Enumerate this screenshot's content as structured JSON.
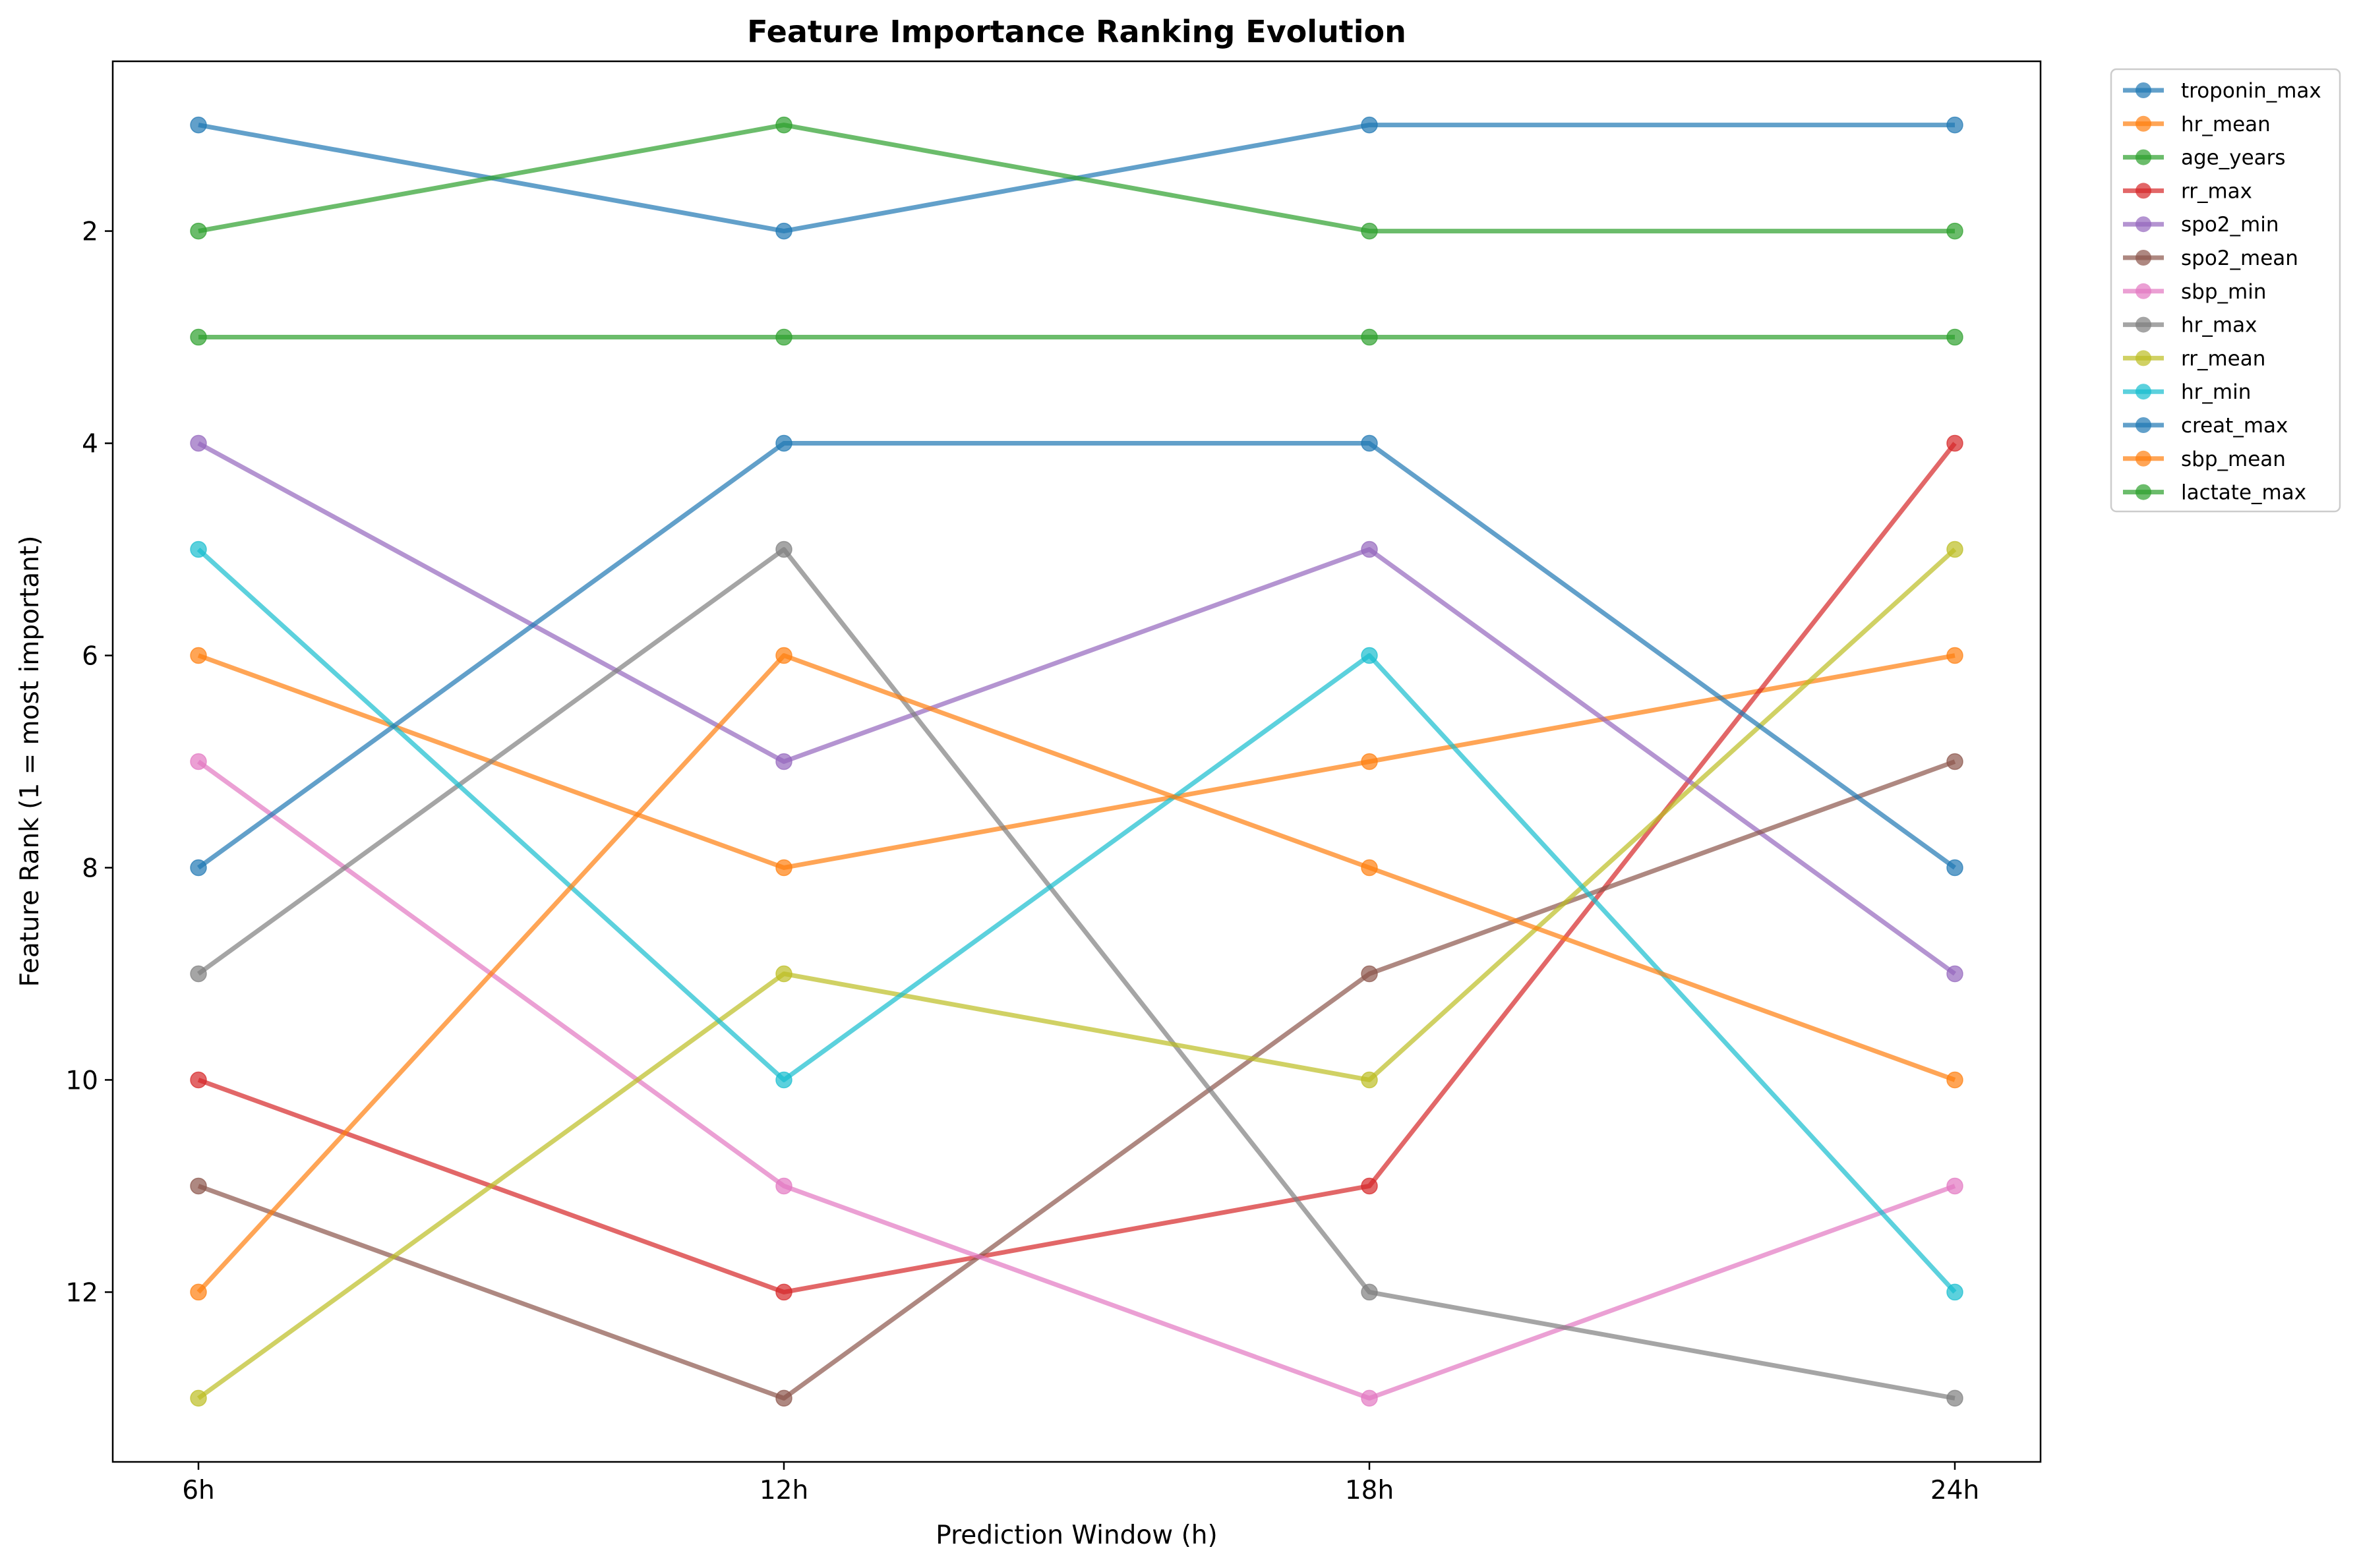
{
  "chart_data": {
    "type": "line",
    "title": "Feature Importance Ranking Evolution",
    "xlabel": "Prediction Window (h)",
    "ylabel": "Feature Rank (1 = most important)",
    "categories": [
      "6h",
      "12h",
      "18h",
      "24h"
    ],
    "yticks": [
      2,
      4,
      6,
      8,
      10,
      12
    ],
    "ytick_labels": [
      "2",
      "4",
      "6",
      "8",
      "10",
      "12"
    ],
    "ylim": [
      13.6,
      0.4
    ],
    "y_inverted": true,
    "grid": false,
    "legend_position": "outside-top-right",
    "series": [
      {
        "name": "troponin_max",
        "color": "#1f77b4",
        "values": [
          1,
          2,
          1,
          1
        ]
      },
      {
        "name": "hr_mean",
        "color": "#ff7f0e",
        "values": [
          6,
          8,
          7,
          6
        ]
      },
      {
        "name": "age_years",
        "color": "#2ca02c",
        "values": [
          2,
          1,
          2,
          2
        ]
      },
      {
        "name": "rr_max",
        "color": "#d62728",
        "values": [
          10,
          12,
          11,
          4
        ]
      },
      {
        "name": "spo2_min",
        "color": "#9467bd",
        "values": [
          4,
          7,
          5,
          9
        ]
      },
      {
        "name": "spo2_mean",
        "color": "#8c564b",
        "values": [
          11,
          13,
          9,
          7
        ]
      },
      {
        "name": "sbp_min",
        "color": "#e377c2",
        "values": [
          7,
          11,
          13,
          11
        ]
      },
      {
        "name": "hr_max",
        "color": "#7f7f7f",
        "values": [
          9,
          5,
          12,
          13
        ]
      },
      {
        "name": "rr_mean",
        "color": "#bcbd22",
        "values": [
          13,
          9,
          10,
          5
        ]
      },
      {
        "name": "hr_min",
        "color": "#17becf",
        "values": [
          5,
          10,
          6,
          12
        ]
      },
      {
        "name": "creat_max",
        "color": "#1f77b4",
        "values": [
          8,
          4,
          4,
          8
        ]
      },
      {
        "name": "sbp_mean",
        "color": "#ff7f0e",
        "values": [
          12,
          6,
          8,
          10
        ]
      },
      {
        "name": "lactate_max",
        "color": "#2ca02c",
        "values": [
          3,
          3,
          3,
          3
        ]
      }
    ]
  }
}
